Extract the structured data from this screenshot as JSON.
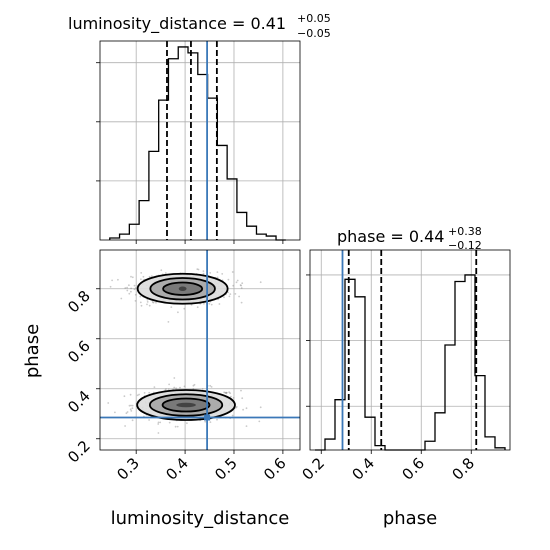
{
  "chart_data": {
    "type": "corner",
    "parameters": [
      "luminosity_distance",
      "phase"
    ],
    "truths": {
      "luminosity_distance": 0.445,
      "phase": 0.285
    },
    "truth_color": "#3b78b8",
    "grid": true,
    "panels": [
      {
        "id": "hist_luminosity_distance",
        "type": "histogram",
        "title": {
          "main": "luminosity_distance = 0.41",
          "sup": "+0.05",
          "sub": "−0.05"
        },
        "xlim": [
          0.226,
          0.635
        ],
        "bin_edges": [
          0.246,
          0.266,
          0.286,
          0.306,
          0.326,
          0.346,
          0.366,
          0.386,
          0.406,
          0.426,
          0.446,
          0.466,
          0.486,
          0.506,
          0.526,
          0.546,
          0.566,
          0.586,
          0.606
        ],
        "counts": [
          0.01,
          0.03,
          0.08,
          0.2,
          0.45,
          0.71,
          0.92,
          0.98,
          0.95,
          0.84,
          0.72,
          0.48,
          0.31,
          0.14,
          0.07,
          0.03,
          0.02,
          0.0
        ],
        "quantiles": [
          0.363,
          0.412,
          0.465
        ],
        "yticks": [
          0.3,
          0.6,
          0.9
        ]
      },
      {
        "id": "hist_phase",
        "type": "histogram",
        "title": {
          "main": "phase = 0.44",
          "sup": "+0.38",
          "sub": "−0.12"
        },
        "xlim": [
          0.155,
          0.955
        ],
        "bin_edges": [
          0.175,
          0.215,
          0.255,
          0.295,
          0.335,
          0.375,
          0.415,
          0.455,
          0.495,
          0.535,
          0.575,
          0.615,
          0.655,
          0.695,
          0.735,
          0.775,
          0.815,
          0.855,
          0.895,
          0.935
        ],
        "counts": [
          0.0,
          0.05,
          0.23,
          0.78,
          0.7,
          0.15,
          0.02,
          0.0,
          0.0,
          0.0,
          0.0,
          0.04,
          0.17,
          0.48,
          0.77,
          0.8,
          0.34,
          0.06,
          0.01
        ],
        "quantiles": [
          0.31,
          0.44,
          0.82
        ],
        "yticks": [
          0.2,
          0.5,
          0.8
        ]
      },
      {
        "id": "joint_luminosity_distance_phase",
        "type": "contour2d",
        "xlim": [
          0.226,
          0.635
        ],
        "ylim": [
          0.155,
          0.955
        ],
        "modes": [
          {
            "center": [
              0.402,
              0.335
            ],
            "contour_half_widths": [
              [
                0.02,
                0.009
              ],
              [
                0.048,
                0.026
              ],
              [
                0.074,
                0.043
              ],
              [
                0.1,
                0.06
              ]
            ]
          },
          {
            "center": [
              0.395,
              0.8
            ],
            "contour_half_widths": [
              [
                0.008,
                0.009
              ],
              [
                0.04,
                0.025
              ],
              [
                0.066,
                0.043
              ],
              [
                0.092,
                0.06
              ]
            ]
          }
        ],
        "shades": [
          "#3d3d3d",
          "#737373",
          "#a6a6a6",
          "#dcdcdc"
        ]
      }
    ],
    "xticks": {
      "luminosity_distance": [
        "0.3",
        "0.4",
        "0.5",
        "0.6"
      ],
      "phase": [
        "0.2",
        "0.4",
        "0.6",
        "0.8"
      ]
    },
    "yticks": {
      "phase": [
        "0.2",
        "0.4",
        "0.6",
        "0.8"
      ]
    },
    "axis_labels": {
      "x_left": "luminosity_distance",
      "x_right": "phase",
      "y_bottom": "phase"
    }
  }
}
